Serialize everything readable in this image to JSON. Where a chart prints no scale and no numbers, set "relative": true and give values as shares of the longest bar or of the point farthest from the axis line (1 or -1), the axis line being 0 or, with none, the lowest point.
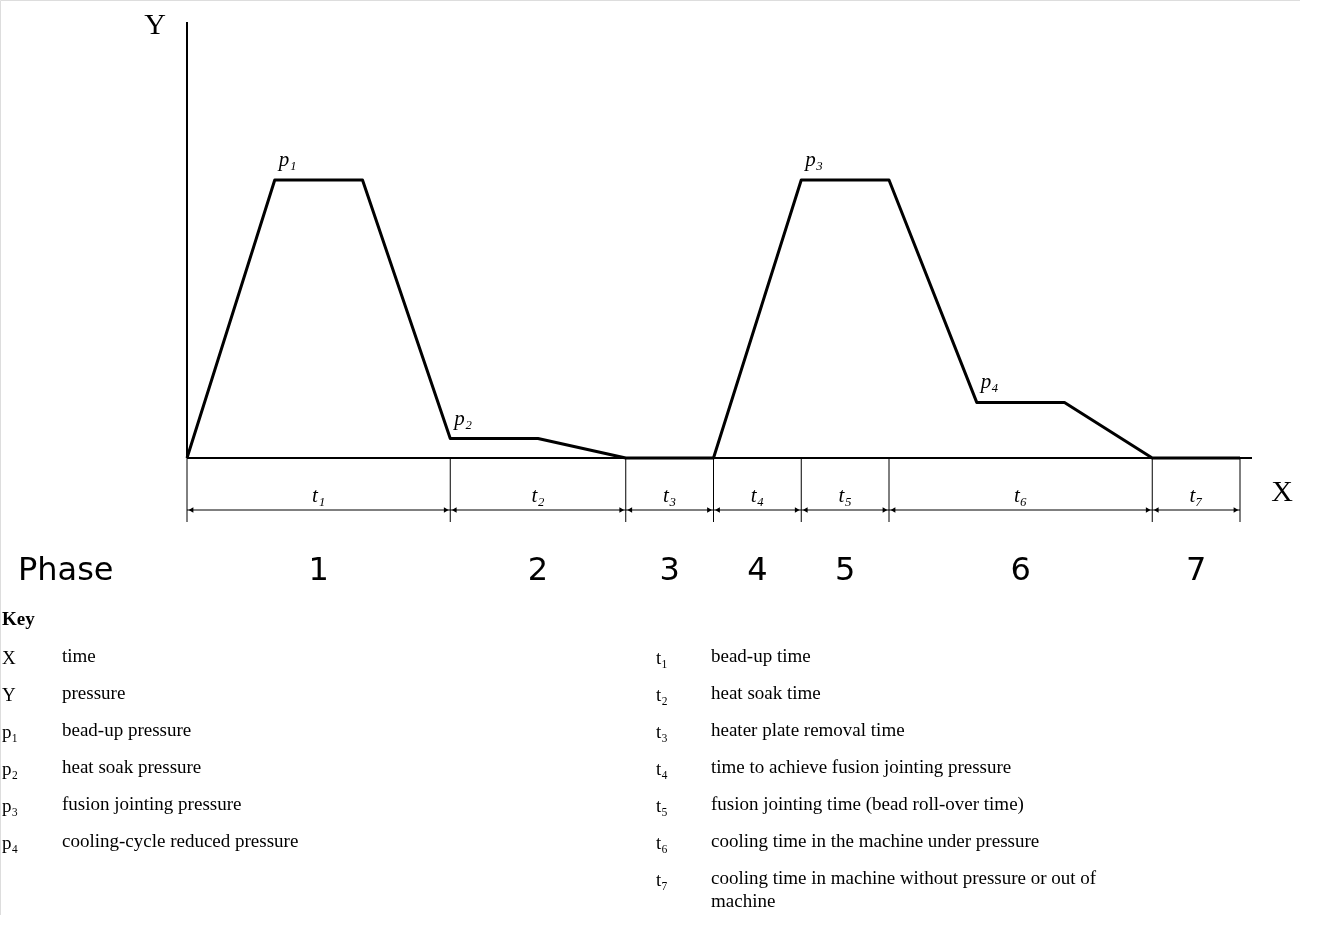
{
  "chart_data": {
    "type": "line",
    "relative": true,
    "xlabel": "X",
    "ylabel": "Y",
    "categories": [
      null,
      null,
      null,
      null,
      null,
      null,
      null,
      null,
      null,
      null,
      null,
      null,
      null
    ],
    "series": [
      {
        "color": "#000000",
        "values": [
          0,
          1,
          1,
          0.07,
          0.07,
          0,
          0,
          1,
          1,
          0.2,
          0.2,
          0,
          0
        ]
      }
    ],
    "marker": "none",
    "line_style": "solid",
    "annotations": [
      "p₁",
      "p₂",
      "p₃",
      "p₄",
      "t₁",
      "t₂",
      "t₃",
      "t₄",
      "t₅",
      "t₆",
      "t₇",
      "Phase",
      "1",
      "2",
      "3",
      "4",
      "5",
      "6",
      "7",
      "Key",
      "X time",
      "Y pressure",
      "p₁ bead-up pressure",
      "p₂ heat soak pressure",
      "p₃ fusion jointing pressure",
      "p₄ cooling-cycle reduced pressure",
      "t₁ bead-up time",
      "t₂ heat soak time",
      "t₃ heater plate removal time",
      "t₄ time to achieve fusion jointing pressure",
      "t₅ fusion jointing time (bead roll-over time)",
      "t₆ cooling time in the machine under pressure",
      "t₇ cooling time in machine without pressure or out of machine"
    ]
  }
}
